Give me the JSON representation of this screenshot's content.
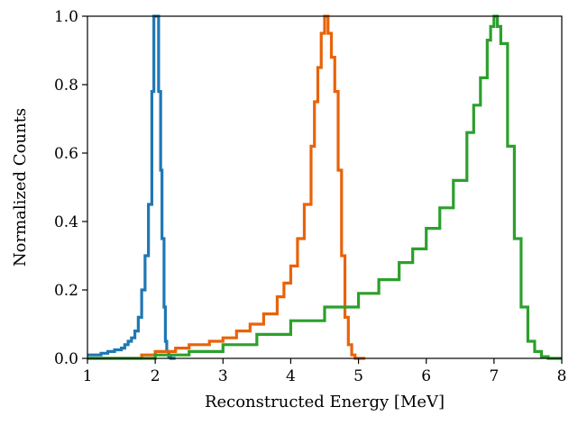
{
  "chart_data": {
    "type": "line",
    "title": "",
    "xlabel": "Reconstructed Energy [MeV]",
    "ylabel": "Normalized Counts",
    "xlim": [
      1,
      8
    ],
    "ylim": [
      0,
      1.0
    ],
    "grid": false,
    "legend": "none",
    "xticks": [
      1,
      2,
      3,
      4,
      5,
      6,
      7,
      8
    ],
    "xtick_labels": [
      "1",
      "2",
      "3",
      "4",
      "5",
      "6",
      "7",
      "8"
    ],
    "yticks": [
      0.0,
      0.2,
      0.4,
      0.6,
      0.8,
      1.0
    ],
    "ytick_labels": [
      "0.0",
      "0.2",
      "0.4",
      "0.6",
      "0.8",
      "1.0"
    ],
    "series": [
      {
        "color": "#1f77b4",
        "x": [
          1.0,
          1.1,
          1.2,
          1.3,
          1.4,
          1.5,
          1.55,
          1.6,
          1.65,
          1.7,
          1.75,
          1.8,
          1.85,
          1.9,
          1.95,
          1.98,
          2.0,
          2.02,
          2.05,
          2.08,
          2.1,
          2.13,
          2.15,
          2.17,
          2.2,
          2.23,
          2.3
        ],
        "y": [
          0.01,
          0.01,
          0.015,
          0.02,
          0.025,
          0.03,
          0.04,
          0.05,
          0.06,
          0.08,
          0.12,
          0.2,
          0.3,
          0.45,
          0.78,
          1.0,
          1.0,
          1.0,
          0.78,
          0.55,
          0.35,
          0.15,
          0.05,
          0.02,
          0.005,
          0.0,
          0.0
        ]
      },
      {
        "color": "#e8630a",
        "x": [
          1.0,
          1.5,
          1.8,
          2.0,
          2.3,
          2.5,
          2.8,
          3.0,
          3.2,
          3.4,
          3.6,
          3.8,
          3.9,
          4.0,
          4.1,
          4.2,
          4.3,
          4.35,
          4.4,
          4.45,
          4.5,
          4.55,
          4.6,
          4.65,
          4.7,
          4.75,
          4.8,
          4.85,
          4.9,
          4.95,
          5.0,
          5.1
        ],
        "y": [
          0.0,
          0.0,
          0.01,
          0.02,
          0.03,
          0.04,
          0.05,
          0.06,
          0.08,
          0.1,
          0.13,
          0.18,
          0.22,
          0.27,
          0.35,
          0.45,
          0.62,
          0.75,
          0.85,
          0.95,
          1.0,
          0.95,
          0.88,
          0.78,
          0.55,
          0.3,
          0.12,
          0.04,
          0.01,
          0.0,
          0.0,
          0.0
        ]
      },
      {
        "color": "#2ca02c",
        "x": [
          1.0,
          1.5,
          2.0,
          2.5,
          3.0,
          3.5,
          4.0,
          4.5,
          5.0,
          5.3,
          5.6,
          5.8,
          6.0,
          6.2,
          6.4,
          6.6,
          6.7,
          6.8,
          6.9,
          6.95,
          7.0,
          7.05,
          7.1,
          7.2,
          7.3,
          7.4,
          7.5,
          7.6,
          7.7,
          7.8,
          7.9,
          8.0
        ],
        "y": [
          0.0,
          0.0,
          0.01,
          0.02,
          0.04,
          0.07,
          0.11,
          0.15,
          0.19,
          0.23,
          0.28,
          0.32,
          0.38,
          0.44,
          0.52,
          0.66,
          0.74,
          0.82,
          0.93,
          0.97,
          1.0,
          0.97,
          0.92,
          0.62,
          0.35,
          0.15,
          0.05,
          0.02,
          0.005,
          0.0,
          0.0,
          0.0
        ]
      }
    ]
  }
}
